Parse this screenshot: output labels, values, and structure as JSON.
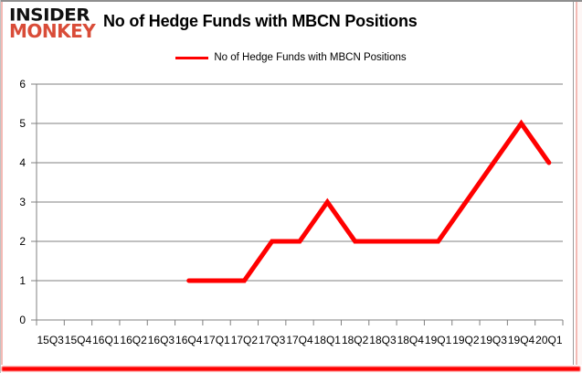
{
  "header": {
    "logo_top": "INSIDER",
    "logo_bottom": "MONKEY",
    "title": "No of Hedge Funds with MBCN Positions"
  },
  "legend": {
    "label": "No of Hedge Funds with MBCN Positions",
    "swatch_color": "#ff0000"
  },
  "colors": {
    "line": "#ff0000",
    "grid": "#808080",
    "axis_text": "#000000",
    "logo_red": "#d94c38",
    "frame_top_gray": "#8f8f8f",
    "frame_side_pink": "#f3bab5",
    "frame_bottom_red": "#ff0000"
  },
  "chart_data": {
    "type": "line",
    "title": "No of Hedge Funds with MBCN Positions",
    "categories": [
      "15Q3",
      "15Q4",
      "16Q1",
      "16Q2",
      "16Q3",
      "16Q4",
      "17Q1",
      "17Q2",
      "17Q3",
      "17Q4",
      "18Q1",
      "18Q2",
      "18Q3",
      "18Q4",
      "19Q1",
      "19Q2",
      "19Q3",
      "19Q4",
      "20Q1"
    ],
    "series": [
      {
        "name": "No of Hedge Funds with MBCN Positions",
        "color": "#ff0000",
        "values": [
          null,
          null,
          null,
          null,
          null,
          1,
          1,
          1,
          2,
          2,
          3,
          2,
          2,
          2,
          2,
          3,
          4,
          5,
          4
        ]
      }
    ],
    "xlabel": "",
    "ylabel": "",
    "ylim": [
      0,
      6
    ],
    "yticks": [
      0,
      1,
      2,
      3,
      4,
      5,
      6
    ],
    "grid": true,
    "legend_position": "top-center"
  }
}
